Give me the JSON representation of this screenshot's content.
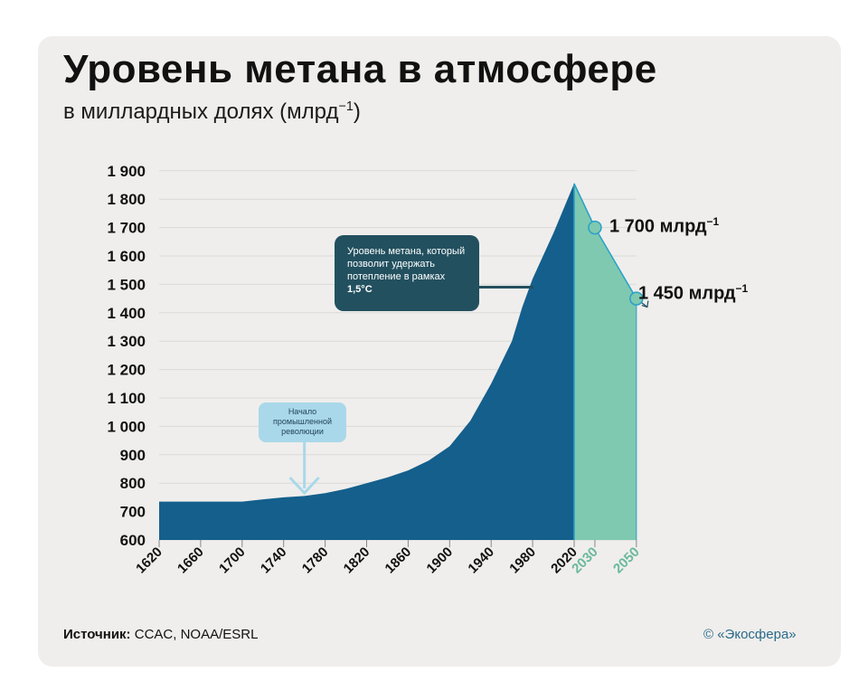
{
  "title": "Уровень метана в атмосфере",
  "subtitle_main": "в миллардных долях  (млрд",
  "subtitle_sup": "−1",
  "subtitle_end": ")",
  "callout_dark": {
    "text": "Уровень метана, который позволит удержать потепление в рамках ",
    "bold": "1,5°С"
  },
  "callout_light": "Начало промышленной революции",
  "annotations": {
    "a1700": "1 700 млрд",
    "a1450": "1 450 млрд",
    "sup": "−1"
  },
  "source_label": "Источник:",
  "source_value": " CCAC, NOAA/ESRL",
  "copyright": "© «Экосфера»",
  "colors": {
    "historical": "#145f8c",
    "projection": "#7fc9b0",
    "projection_label": "#6ab99c",
    "callout_dark": "#22505f",
    "callout_light": "#a9d8ea"
  },
  "chart_data": {
    "type": "area",
    "ylim": [
      600,
      1900
    ],
    "yticks": [
      600,
      700,
      800,
      900,
      1000,
      1100,
      1200,
      1300,
      1400,
      1500,
      1600,
      1700,
      1800,
      1900
    ],
    "ytick_labels": [
      "600",
      "700",
      "800",
      "900",
      "1 000",
      "1 100",
      "1 200",
      "1 300",
      "1 400",
      "1 500",
      "1 600",
      "1 700",
      "1 800",
      "1 900"
    ],
    "xticks": [
      1620,
      1660,
      1700,
      1740,
      1780,
      1820,
      1860,
      1900,
      1940,
      1980,
      2020,
      2030,
      2050
    ],
    "xtick_labels": [
      "1620",
      "1660",
      "1700",
      "1740",
      "1780",
      "1820",
      "1860",
      "1900",
      "1940",
      "1980",
      "2020",
      "2030",
      "2050"
    ],
    "x_positions": [
      0,
      40,
      80,
      120,
      160,
      200,
      240,
      280,
      320,
      360,
      400,
      420,
      460
    ],
    "historical": {
      "x": [
        0,
        80,
        100,
        120,
        140,
        160,
        180,
        200,
        220,
        240,
        260,
        280,
        300,
        320,
        340,
        350,
        360,
        380,
        400
      ],
      "y": [
        735,
        735,
        743,
        750,
        755,
        765,
        780,
        800,
        820,
        845,
        880,
        930,
        1020,
        1150,
        1300,
        1420,
        1520,
        1680,
        1855
      ]
    },
    "projection": {
      "x": [
        400,
        420,
        460
      ],
      "y": [
        1855,
        1700,
        1450
      ]
    },
    "points": [
      {
        "x": 420,
        "y": 1700
      },
      {
        "x": 460,
        "y": 1450
      }
    ],
    "target_line_value": 1490,
    "callout_arrow_x": 140
  }
}
